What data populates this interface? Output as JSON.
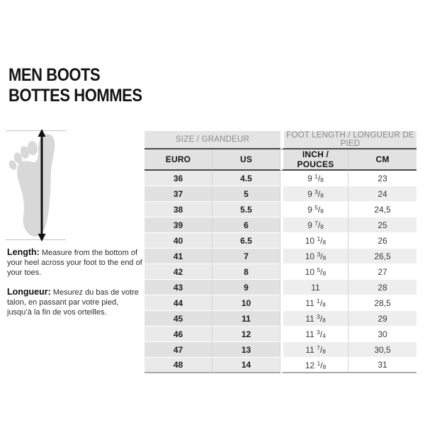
{
  "title": {
    "line1": "MEN BOOTS",
    "line2": "BOTTES HOMMES"
  },
  "measure": {
    "length_label": "Length:",
    "length_text": " Measure from the bottom of your heel across your foot to the end of your toes.",
    "longueur_label": "Longueur:",
    "longueur_text": " Mesurez du bas de votre talon, en passant par votre pied, jusqu’à la fin de vos orteilles."
  },
  "table": {
    "group_headers": [
      {
        "label": "SIZE / GRANDEUR"
      },
      {
        "label": "FOOT LENGTH / LONGUEUR DE PIED"
      }
    ],
    "columns": [
      "EURO",
      "US",
      "INCH / POUCES",
      "CM"
    ],
    "rows": [
      {
        "euro": "36",
        "us": "4.5",
        "inch": "9 1/8",
        "cm": "23"
      },
      {
        "euro": "37",
        "us": "5",
        "inch": "9 3/8",
        "cm": "24"
      },
      {
        "euro": "38",
        "us": "5.5",
        "inch": "9 5/8",
        "cm": "24,5"
      },
      {
        "euro": "39",
        "us": "6",
        "inch": "9 7/8",
        "cm": "25"
      },
      {
        "euro": "40",
        "us": "6.5",
        "inch": "10 1/8",
        "cm": "26"
      },
      {
        "euro": "41",
        "us": "7",
        "inch": "10 3/8",
        "cm": "26,5"
      },
      {
        "euro": "42",
        "us": "8",
        "inch": "10 5/8",
        "cm": "27"
      },
      {
        "euro": "43",
        "us": "9",
        "inch": "11",
        "cm": "28"
      },
      {
        "euro": "44",
        "us": "10",
        "inch": "11 1/8",
        "cm": "28,5"
      },
      {
        "euro": "45",
        "us": "11",
        "inch": "11 3/8",
        "cm": "29"
      },
      {
        "euro": "46",
        "us": "12",
        "inch": "11 3/4",
        "cm": "30"
      },
      {
        "euro": "47",
        "us": "13",
        "inch": "11 7/8",
        "cm": "30,5"
      },
      {
        "euro": "48",
        "us": "14",
        "inch": "12 1/8",
        "cm": "31"
      }
    ]
  },
  "colors": {
    "header_bg": "#e4e4e4",
    "header_border": "#4a4a4a",
    "muted_text": "#8a8a8a",
    "row_alt": "#eeeeee",
    "foot_fill": "#d8d8d8"
  }
}
